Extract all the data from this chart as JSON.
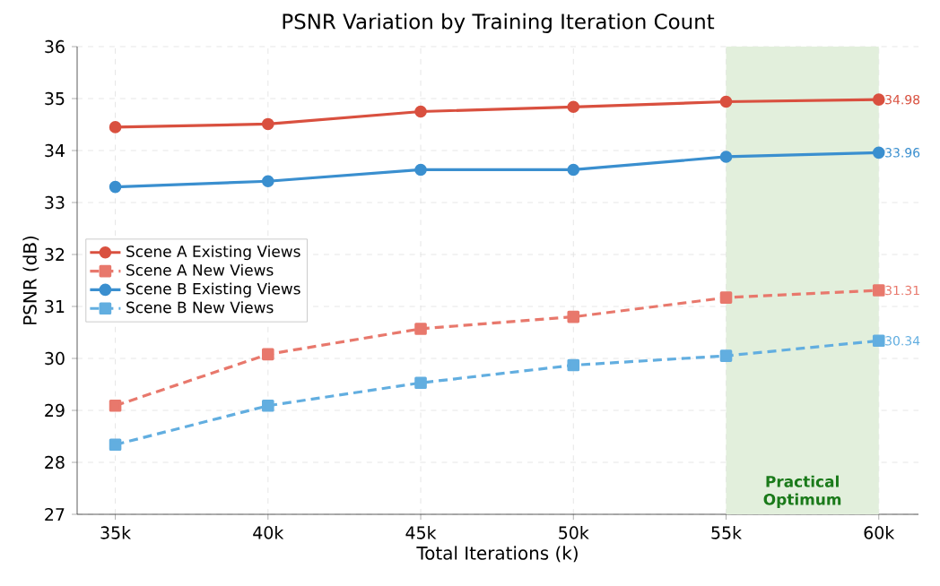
{
  "chart_data": {
    "type": "line",
    "title": "PSNR Variation by Training Iteration Count",
    "xlabel": "Total Iterations (k)",
    "ylabel": "PSNR (dB)",
    "x": [
      35,
      40,
      45,
      50,
      55,
      60
    ],
    "series": [
      {
        "name": "Scene A Existing Views",
        "color": "#d9503f",
        "marker": "circle",
        "line_style": "solid",
        "values": [
          34.45,
          34.51,
          34.75,
          34.84,
          34.94,
          34.98
        ],
        "value_labels": [
          null,
          null,
          null,
          null,
          null,
          "34.98"
        ]
      },
      {
        "name": "Scene A New Views",
        "color": "#e8786c",
        "marker": "square",
        "line_style": "dashed",
        "values": [
          29.09,
          30.08,
          30.57,
          30.8,
          31.17,
          31.31
        ],
        "value_labels": [
          null,
          null,
          null,
          null,
          null,
          "31.31"
        ]
      },
      {
        "name": "Scene B Existing Views",
        "color": "#3a8fcf",
        "marker": "circle",
        "line_style": "solid",
        "values": [
          33.3,
          33.41,
          33.63,
          33.63,
          33.88,
          33.96
        ],
        "value_labels": [
          null,
          null,
          null,
          null,
          null,
          "33.96"
        ]
      },
      {
        "name": "Scene B New Views",
        "color": "#62aee0",
        "marker": "square",
        "line_style": "dashed",
        "values": [
          28.34,
          29.09,
          29.53,
          29.87,
          30.05,
          30.34
        ],
        "value_labels": [
          null,
          null,
          null,
          null,
          null,
          "30.34"
        ]
      }
    ],
    "xlim": [
      33.75,
      61.3
    ],
    "ylim": [
      27,
      36
    ],
    "xticks": [
      {
        "value": 35,
        "label": "35k"
      },
      {
        "value": 40,
        "label": "40k"
      },
      {
        "value": 45,
        "label": "45k"
      },
      {
        "value": 50,
        "label": "50k"
      },
      {
        "value": 55,
        "label": "55k"
      },
      {
        "value": 60,
        "label": "60k"
      }
    ],
    "yticks": [
      27,
      28,
      29,
      30,
      31,
      32,
      33,
      34,
      35,
      36
    ],
    "bands": [
      {
        "axis": "x",
        "from": 55,
        "to": 60,
        "label": "Practical Optimum",
        "color": "#e2efdc"
      }
    ],
    "grid": true,
    "legend": "left"
  }
}
